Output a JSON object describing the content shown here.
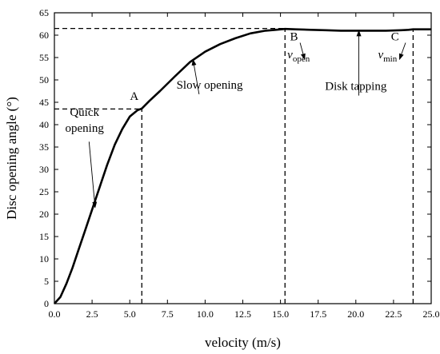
{
  "chart_data": {
    "type": "line",
    "xlabel": "velocity (m/s)",
    "ylabel": "Disc opening angle (°)",
    "xlim": [
      0,
      25
    ],
    "ylim": [
      0,
      65
    ],
    "x_ticks": [
      0,
      2.5,
      5,
      7.5,
      10,
      12.5,
      15,
      17.5,
      20,
      22.5,
      25
    ],
    "x_tick_labels": [
      "0.0",
      "2.5",
      "5.0",
      "7.5",
      "10.0",
      "12.5",
      "15.0",
      "17.5",
      "20.0",
      "22.5",
      "25.0"
    ],
    "y_ticks": [
      0,
      5,
      10,
      15,
      20,
      25,
      30,
      35,
      40,
      45,
      50,
      55,
      60,
      65
    ],
    "y_tick_labels": [
      "0",
      "5",
      "10",
      "15",
      "20",
      "25",
      "30",
      "35",
      "40",
      "45",
      "50",
      "55",
      "60",
      "65"
    ],
    "grid": false,
    "series": [
      {
        "x": [
          0,
          0.4,
          0.8,
          1.2,
          1.6,
          2.0,
          2.5,
          3.0,
          3.5,
          4.0,
          4.5,
          5.0,
          5.5,
          5.8,
          6.3,
          7.0,
          8.0,
          9.0,
          10.0,
          11.0,
          12.0,
          13.0,
          14.0,
          14.7,
          15.3,
          16.0,
          17.0,
          18.0,
          19.0,
          20.0,
          21.0,
          22.0,
          23.0,
          23.5,
          23.8,
          24.2,
          25.0
        ],
        "y": [
          0,
          1.5,
          4.5,
          8.0,
          12.0,
          16.0,
          21.0,
          26.0,
          31.0,
          35.5,
          39.0,
          41.8,
          43.2,
          43.6,
          45.3,
          47.5,
          50.8,
          54.0,
          56.3,
          58.0,
          59.3,
          60.4,
          61.0,
          61.2,
          61.4,
          61.3,
          61.2,
          61.1,
          61.0,
          61.0,
          61.0,
          61.0,
          61.1,
          61.2,
          61.3,
          61.3,
          61.3
        ]
      }
    ],
    "reference_lines": [
      {
        "from": [
          0,
          43.5
        ],
        "to": [
          5.8,
          43.5
        ]
      },
      {
        "from": [
          5.8,
          0
        ],
        "to": [
          5.8,
          43.5
        ]
      },
      {
        "from": [
          0,
          61.5
        ],
        "to": [
          15.3,
          61.5
        ]
      },
      {
        "from": [
          15.3,
          0
        ],
        "to": [
          15.3,
          61.5
        ]
      },
      {
        "from": [
          23.8,
          0
        ],
        "to": [
          23.8,
          61.5
        ]
      }
    ],
    "annotations": [
      {
        "id": "A",
        "text": "A",
        "x": 5.3,
        "y": 45.5
      },
      {
        "id": "B",
        "text": "B",
        "x": 15.9,
        "y": 58.8
      },
      {
        "id": "C",
        "text": "C",
        "x": 22.6,
        "y": 58.8
      },
      {
        "id": "quick-1",
        "text": "Quick",
        "x": 2.0,
        "y": 42.0
      },
      {
        "id": "quick-2",
        "text": "opening",
        "x": 2.0,
        "y": 38.4
      },
      {
        "id": "slow",
        "text": "Slow opening",
        "x": 10.3,
        "y": 48.0
      },
      {
        "id": "tapping",
        "text": "Disk tapping",
        "x": 20.0,
        "y": 47.8
      }
    ],
    "subscript_annotations": [
      {
        "id": "v-open",
        "base": "v",
        "sub": "open",
        "x": 16.2,
        "y": 54.8
      },
      {
        "id": "v-min",
        "base": "v",
        "sub": "min",
        "x": 22.1,
        "y": 54.8
      }
    ],
    "arrows": [
      {
        "id": "arrow-quick",
        "from": [
          2.3,
          36.2
        ],
        "to": [
          2.7,
          21.5
        ]
      },
      {
        "id": "arrow-slow",
        "from": [
          9.6,
          46.8
        ],
        "to": [
          9.2,
          54.5
        ]
      },
      {
        "id": "arrow-b",
        "from": [
          16.3,
          58.3
        ],
        "to": [
          16.6,
          54.6
        ]
      },
      {
        "id": "arrow-tapping",
        "from": [
          20.2,
          46.5
        ],
        "to": [
          20.2,
          61.0
        ]
      },
      {
        "id": "arrow-c",
        "from": [
          23.3,
          58.3
        ],
        "to": [
          22.9,
          54.6
        ]
      }
    ]
  }
}
